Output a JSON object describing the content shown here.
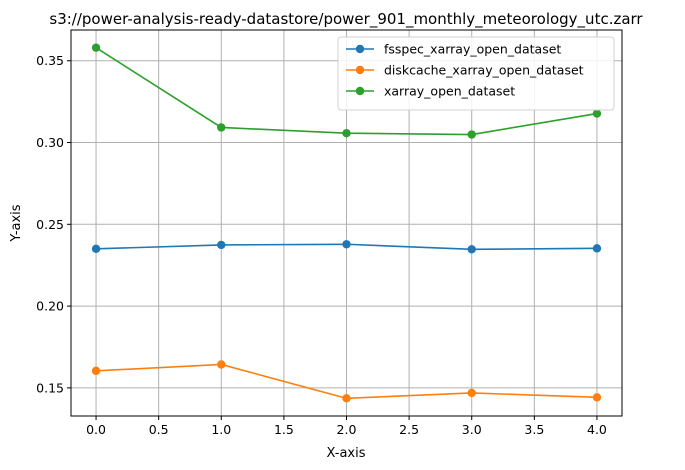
{
  "chart_data": {
    "type": "line",
    "title": "s3://power-analysis-ready-datastore/power_901_monthly_meteorology_utc.zarr",
    "xlabel": "X-axis",
    "ylabel": "Y-axis",
    "x": [
      0,
      1,
      2,
      3,
      4
    ],
    "xlim": [
      -0.2,
      4.2
    ],
    "ylim": [
      0.1328,
      0.3688
    ],
    "xticks": [
      0.0,
      0.5,
      1.0,
      1.5,
      2.0,
      2.5,
      3.0,
      3.5,
      4.0
    ],
    "xtick_labels": [
      "0.0",
      "0.5",
      "1.0",
      "1.5",
      "2.0",
      "2.5",
      "3.0",
      "3.5",
      "4.0"
    ],
    "yticks": [
      0.15,
      0.2,
      0.25,
      0.3,
      0.35
    ],
    "ytick_labels": [
      "0.15",
      "0.20",
      "0.25",
      "0.30",
      "0.35"
    ],
    "grid": true,
    "legend_position": "top-right",
    "series": [
      {
        "name": "fsspec_xarray_open_dataset",
        "color": "#1f77b4",
        "values": [
          0.235,
          0.2374,
          0.2378,
          0.2347,
          0.2353
        ]
      },
      {
        "name": "diskcache_xarray_open_dataset",
        "color": "#ff7f0e",
        "values": [
          0.1604,
          0.1643,
          0.1436,
          0.1469,
          0.1442
        ]
      },
      {
        "name": "xarray_open_dataset",
        "color": "#2ca02c",
        "values": [
          0.358,
          0.3092,
          0.3057,
          0.3049,
          0.3177
        ]
      }
    ]
  }
}
